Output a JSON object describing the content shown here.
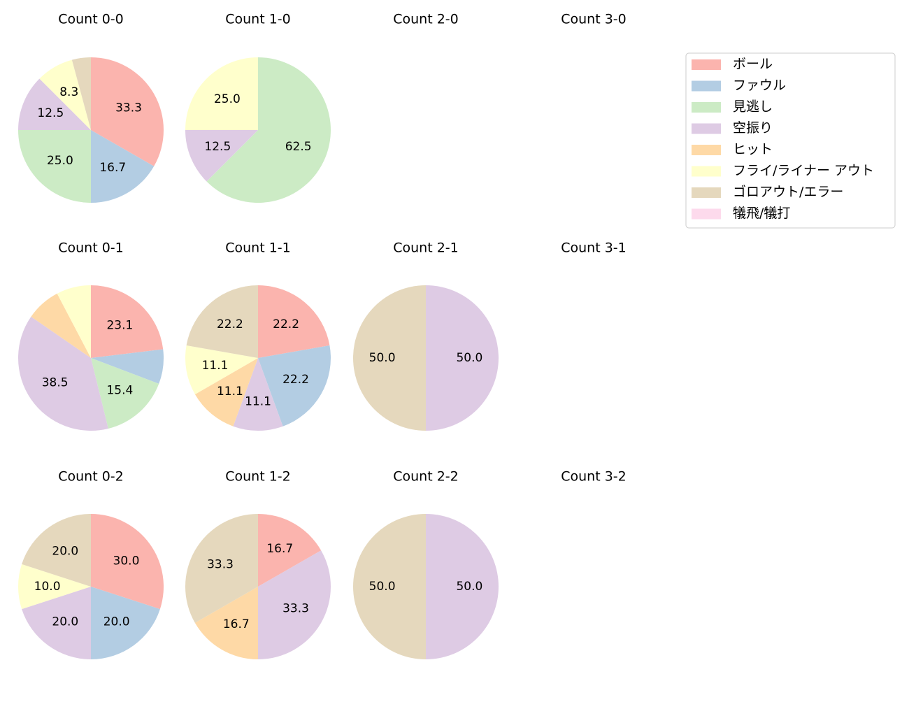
{
  "chart_data": [
    {
      "type": "pie",
      "title": "Count 0-0",
      "values": [
        33.3,
        16.7,
        25.0,
        12.5,
        null,
        8.3,
        4.2,
        null
      ],
      "value_labels": [
        "33.3",
        "16.7",
        "25.0",
        "12.5",
        null,
        "8.3",
        null,
        null
      ]
    },
    {
      "type": "pie",
      "title": "Count 1-0",
      "values": [
        null,
        null,
        62.5,
        12.5,
        null,
        25.0,
        null,
        null
      ],
      "value_labels": [
        null,
        null,
        "62.5",
        "12.5",
        null,
        "25.0",
        null,
        null
      ]
    },
    {
      "type": "pie",
      "title": "Count 2-0"
    },
    {
      "type": "pie",
      "title": "Count 3-0"
    },
    {
      "type": "pie",
      "title": "Count 0-1",
      "values": [
        23.1,
        7.7,
        15.4,
        38.5,
        7.7,
        7.7,
        null,
        null
      ],
      "value_labels": [
        "23.1",
        null,
        "15.4",
        "38.5",
        null,
        null,
        null,
        null
      ]
    },
    {
      "type": "pie",
      "title": "Count 1-1",
      "values": [
        22.2,
        22.2,
        null,
        11.1,
        11.1,
        11.1,
        22.2,
        null
      ],
      "value_labels": [
        "22.2",
        "22.2",
        null,
        "11.1",
        "11.1",
        "11.1",
        "22.2",
        null
      ]
    },
    {
      "type": "pie",
      "title": "Count 2-1",
      "values": [
        null,
        null,
        null,
        50.0,
        null,
        null,
        50.0,
        null
      ],
      "value_labels": [
        null,
        null,
        null,
        "50.0",
        null,
        null,
        "50.0",
        null
      ]
    },
    {
      "type": "pie",
      "title": "Count 3-1"
    },
    {
      "type": "pie",
      "title": "Count 0-2",
      "values": [
        30.0,
        20.0,
        null,
        20.0,
        null,
        10.0,
        20.0,
        null
      ],
      "value_labels": [
        "30.0",
        "20.0",
        null,
        "20.0",
        null,
        "10.0",
        "20.0",
        null
      ]
    },
    {
      "type": "pie",
      "title": "Count 1-2",
      "values": [
        16.7,
        null,
        null,
        33.3,
        16.7,
        null,
        33.3,
        null
      ],
      "value_labels": [
        "16.7",
        null,
        null,
        "33.3",
        "16.7",
        null,
        "33.3",
        null
      ]
    },
    {
      "type": "pie",
      "title": "Count 2-2",
      "values": [
        null,
        null,
        null,
        50.0,
        null,
        null,
        50.0,
        null
      ],
      "value_labels": [
        null,
        null,
        null,
        "50.0",
        null,
        null,
        "50.0",
        null
      ]
    },
    {
      "type": "pie",
      "title": "Count 3-2"
    }
  ],
  "legend": {
    "position": "upper right",
    "categories": [
      "ボール",
      "ファウル",
      "見逃し",
      "空振り",
      "ヒット",
      "フライ/ライナー アウト",
      "ゴロアウト/エラー",
      "犠飛/犠打"
    ],
    "colors": [
      "#fbb4ae",
      "#b3cde3",
      "#ccebc5",
      "#decbe4",
      "#fed9a6",
      "#ffffcc",
      "#e5d8bd",
      "#fddaec"
    ]
  }
}
